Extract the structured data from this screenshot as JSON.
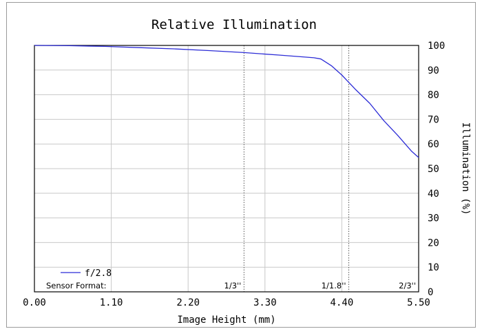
{
  "chart_data": {
    "type": "line",
    "title": "Relative Illumination",
    "xlabel": "Image Height (mm)",
    "ylabel": "Illumination (%)",
    "xlim": [
      0,
      5.5
    ],
    "ylim": [
      0,
      100
    ],
    "x_ticks": [
      "0.00",
      "1.10",
      "2.20",
      "3.30",
      "4.40",
      "5.50"
    ],
    "y_ticks": [
      "0",
      "10",
      "20",
      "30",
      "40",
      "50",
      "60",
      "70",
      "80",
      "90",
      "100"
    ],
    "grid": true,
    "legend_placement": "bottom-left",
    "series": [
      {
        "name": "f/2.8",
        "color": "#2b2bd6",
        "x": [
          0,
          0.5,
          1.0,
          1.5,
          2.0,
          2.5,
          3.0,
          3.5,
          4.0,
          4.1,
          4.25,
          4.4,
          4.6,
          4.8,
          5.0,
          5.2,
          5.4,
          5.5
        ],
        "y": [
          100,
          99.9,
          99.6,
          99.1,
          98.6,
          97.9,
          97.1,
          96.1,
          95.0,
          94.5,
          91.8,
          88.0,
          82.0,
          76.5,
          69.5,
          63.5,
          57.0,
          54.5
        ]
      }
    ],
    "sensor_formats": {
      "label": "Sensor Format:",
      "markers": [
        {
          "label": "1/3''",
          "x": 3.0
        },
        {
          "label": "1/1.8''",
          "x": 4.5
        },
        {
          "label": "2/3''",
          "x": 5.5
        }
      ]
    }
  }
}
